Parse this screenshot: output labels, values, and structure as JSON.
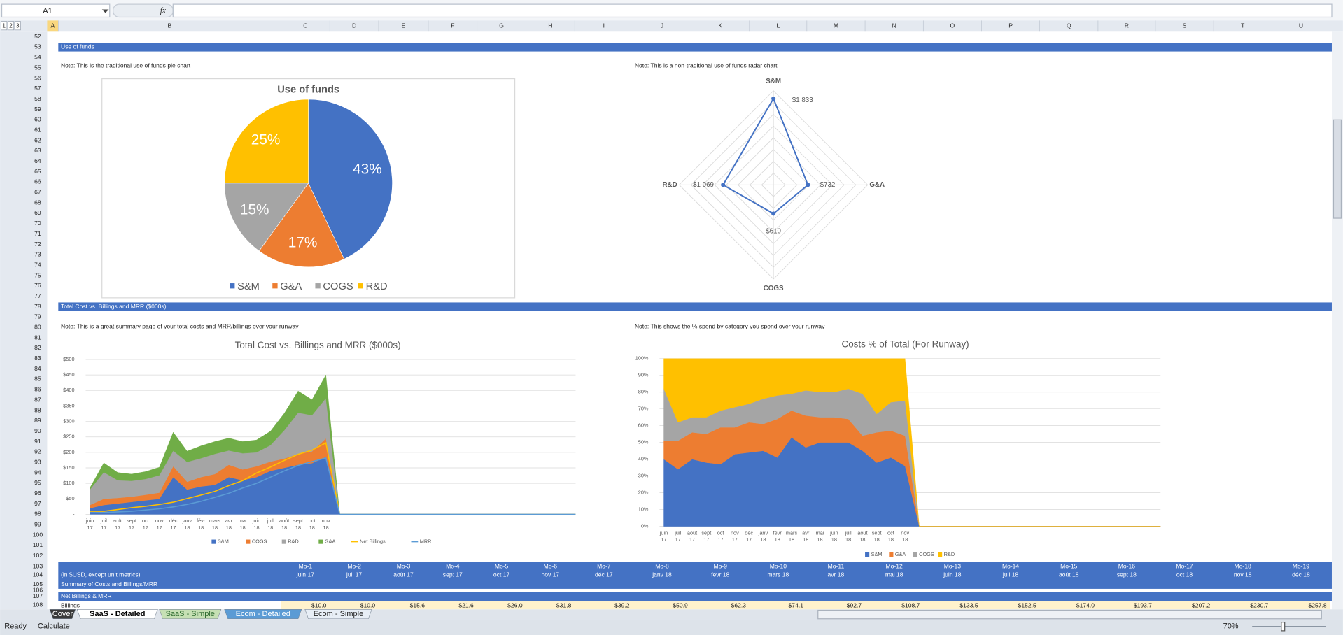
{
  "name_box": "A1",
  "outline_levels": [
    "1",
    "2",
    "3"
  ],
  "column_headers": [
    "A",
    "B",
    "C",
    "D",
    "E",
    "F",
    "G",
    "H",
    "I",
    "J",
    "K",
    "L",
    "M",
    "N",
    "O",
    "P",
    "Q",
    "R",
    "S",
    "T",
    "U"
  ],
  "row_headers": [
    52,
    53,
    54,
    55,
    56,
    57,
    58,
    59,
    60,
    61,
    62,
    63,
    64,
    65,
    66,
    67,
    68,
    69,
    70,
    71,
    72,
    73,
    74,
    75,
    76,
    77,
    78,
    79,
    80,
    81,
    82,
    83,
    84,
    85,
    86,
    87,
    88,
    89,
    90,
    91,
    92,
    93,
    94,
    95,
    96,
    97,
    98,
    99,
    100,
    101,
    102,
    103,
    104,
    105,
    106,
    107,
    108
  ],
  "sections": [
    "Use of funds",
    "Total Cost vs. Billings and MRR ($000s)"
  ],
  "notes": [
    "Note: This is the traditional use of funds pie chart",
    "Note: This is a non-traditional use of funds radar chart",
    "Note: This is a great summary page of your total costs and MRR/billings over your runway",
    "Note: This shows the % spend by category you spend over your runway"
  ],
  "table": {
    "months": [
      "Mo-1",
      "Mo-2",
      "Mo-3",
      "Mo-4",
      "Mo-5",
      "Mo-6",
      "Mo-7",
      "Mo-8",
      "Mo-9",
      "Mo-10",
      "Mo-11",
      "Mo-12",
      "Mo-13",
      "Mo-14",
      "Mo-15",
      "Mo-16",
      "Mo-17",
      "Mo-18",
      "Mo-19"
    ],
    "dates": [
      "juin 17",
      "juil 17",
      "août 17",
      "sept 17",
      "oct 17",
      "nov 17",
      "déc 17",
      "janv 18",
      "févr 18",
      "mars 18",
      "avr 18",
      "mai 18",
      "juin 18",
      "juil 18",
      "août 18",
      "sept 18",
      "oct 18",
      "nov 18",
      "déc 18"
    ],
    "units_label": "(in $USD, except unit metrics)",
    "summary_title": "Summary of Costs and Billings/MRR",
    "net_billings_title": "Net Billings & MRR",
    "billings_label": "Billings",
    "billings": [
      "$10.0",
      "$10.0",
      "$15.6",
      "$21.6",
      "$26.0",
      "$31.8",
      "$39.2",
      "$50.9",
      "$62.3",
      "$74.1",
      "$92.7",
      "$108.7",
      "$133.5",
      "$152.5",
      "$174.0",
      "$193.7",
      "$207.2",
      "$230.7",
      "$257.8"
    ]
  },
  "chart_data": [
    {
      "type": "pie",
      "title": "Use of funds",
      "categories": [
        "S&M",
        "G&A",
        "COGS",
        "R&D"
      ],
      "values": [
        43,
        17,
        15,
        25
      ],
      "value_labels": [
        "43%",
        "17%",
        "15%",
        "25%"
      ],
      "colors": [
        "#4472c4",
        "#ed7d31",
        "#a5a5a5",
        "#ffc000"
      ]
    },
    {
      "type": "radar",
      "categories": [
        "S&M",
        "G&A",
        "COGS",
        "R&D"
      ],
      "values": [
        1833,
        732,
        610,
        1069
      ],
      "value_labels": [
        "$1 833",
        "$732",
        "$610",
        "$1 069"
      ],
      "color": "#4472c4",
      "ylim": [
        0,
        2000
      ],
      "yticks": [
        250,
        500,
        750,
        1000,
        1250,
        1500,
        1750,
        2000
      ]
    },
    {
      "type": "stacked_area",
      "title": "Total Cost vs. Billings and MRR ($000s)",
      "categories": [
        "juin 17",
        "juil 17",
        "août 17",
        "sept 17",
        "oct 17",
        "nov 17",
        "déc 17",
        "janv 18",
        "févr 18",
        "mars 18",
        "avr 18",
        "mai 18",
        "juin 18",
        "juil 18",
        "août 18",
        "sept 18",
        "oct 18",
        "nov 18",
        null,
        null,
        null,
        null,
        null,
        null,
        null,
        null,
        null,
        null,
        null,
        null,
        null,
        null,
        null,
        null,
        null,
        null
      ],
      "ylim": [
        0,
        500
      ],
      "yticks": [
        {
          "value": 0,
          "label": "-"
        },
        {
          "value": 50,
          "label": "$50"
        },
        {
          "value": 100,
          "label": "$100"
        },
        {
          "value": 150,
          "label": "$150"
        },
        {
          "value": 200,
          "label": "$200"
        },
        {
          "value": 250,
          "label": "$250"
        },
        {
          "value": 300,
          "label": "$300"
        },
        {
          "value": 350,
          "label": "$350"
        },
        {
          "value": 400,
          "label": "$400"
        },
        {
          "value": 450,
          "label": "$450"
        },
        {
          "value": 500,
          "label": "$500"
        }
      ],
      "grid": true,
      "series": [
        {
          "name": "S&M",
          "color": "#4472c4",
          "values": [
            20,
            30,
            35,
            40,
            45,
            50,
            120,
            80,
            90,
            95,
            120,
            110,
            120,
            140,
            150,
            160,
            165,
            185,
            0,
            0,
            0,
            0,
            0,
            0,
            0,
            0,
            0,
            0,
            0,
            0,
            0,
            0,
            0,
            0,
            0,
            0
          ]
        },
        {
          "name": "COGS",
          "color": "#ed7d31",
          "values": [
            10,
            20,
            18,
            17,
            18,
            20,
            35,
            25,
            30,
            35,
            40,
            35,
            35,
            30,
            30,
            35,
            38,
            60,
            0,
            0,
            0,
            0,
            0,
            0,
            0,
            0,
            0,
            0,
            0,
            0,
            0,
            0,
            0,
            0,
            0,
            0
          ]
        },
        {
          "name": "R&D",
          "color": "#a5a5a5",
          "values": [
            50,
            86,
            57,
            51,
            51,
            56,
            50,
            64,
            61,
            65,
            46,
            52,
            45,
            53,
            91,
            133,
            117,
            130,
            0,
            0,
            0,
            0,
            0,
            0,
            0,
            0,
            0,
            0,
            0,
            0,
            0,
            0,
            0,
            0,
            0,
            0
          ]
        },
        {
          "name": "G&A",
          "color": "#70ad47",
          "values": [
            6,
            30,
            25,
            22,
            24,
            26,
            60,
            35,
            40,
            40,
            40,
            38,
            40,
            45,
            55,
            70,
            50,
            75,
            0,
            0,
            0,
            0,
            0,
            0,
            0,
            0,
            0,
            0,
            0,
            0,
            0,
            0,
            0,
            0,
            0,
            0
          ]
        },
        {
          "name": "Net Billings",
          "color": "#ffc000",
          "type": "line",
          "values": [
            10,
            10,
            15.6,
            21.6,
            26,
            31.8,
            39.2,
            50.9,
            62.3,
            74.1,
            92.7,
            108.7,
            133.5,
            152.5,
            174,
            193.7,
            207.2,
            230.7,
            0,
            0,
            0,
            0,
            0,
            0,
            0,
            0,
            0,
            0,
            0,
            0,
            0,
            0,
            0,
            0,
            0,
            0
          ]
        },
        {
          "name": "MRR",
          "color": "#5b9bd5",
          "type": "line",
          "values": [
            5,
            6,
            8,
            10,
            14,
            18,
            24,
            32,
            42,
            55,
            68,
            85,
            100,
            120,
            140,
            158,
            170,
            182,
            0,
            0,
            0,
            0,
            0,
            0,
            0,
            0,
            0,
            0,
            0,
            0,
            0,
            0,
            0,
            0,
            0,
            0
          ]
        }
      ]
    },
    {
      "type": "stacked_area_percent",
      "title": "Costs % of Total (For Runway)",
      "categories": [
        "juin 17",
        "juil 17",
        "août 17",
        "sept 17",
        "oct 17",
        "nov 17",
        "déc 17",
        "janv 18",
        "févr 18",
        "mars 18",
        "avr 18",
        "mai 18",
        "juin 18",
        "juil 18",
        "août 18",
        "sept 18",
        "oct 18",
        "nov 18",
        null,
        null,
        null,
        null,
        null,
        null,
        null,
        null,
        null,
        null,
        null,
        null,
        null,
        null,
        null,
        null,
        null,
        null
      ],
      "ylim": [
        0,
        100
      ],
      "yticks": [
        {
          "value": 0,
          "label": "0%"
        },
        {
          "value": 10,
          "label": "10%"
        },
        {
          "value": 20,
          "label": "20%"
        },
        {
          "value": 30,
          "label": "30%"
        },
        {
          "value": 40,
          "label": "40%"
        },
        {
          "value": 50,
          "label": "50%"
        },
        {
          "value": 60,
          "label": "60%"
        },
        {
          "value": 70,
          "label": "70%"
        },
        {
          "value": 80,
          "label": "80%"
        },
        {
          "value": 90,
          "label": "90%"
        },
        {
          "value": 100,
          "label": "100%"
        }
      ],
      "grid": true,
      "series": [
        {
          "name": "S&M",
          "color": "#4472c4",
          "values": [
            40,
            34,
            40,
            38,
            37,
            43,
            44,
            45,
            41,
            53,
            47,
            50,
            50,
            50,
            45,
            38,
            41,
            36,
            0,
            0,
            0,
            0,
            0,
            0,
            0,
            0,
            0,
            0,
            0,
            0,
            0,
            0,
            0,
            0,
            0,
            0
          ]
        },
        {
          "name": "G&A",
          "color": "#ed7d31",
          "values": [
            11,
            17,
            16,
            17,
            22,
            16,
            18,
            16,
            23,
            16,
            19,
            15,
            15,
            14,
            9,
            18,
            16,
            18,
            0,
            0,
            0,
            0,
            0,
            0,
            0,
            0,
            0,
            0,
            0,
            0,
            0,
            0,
            0,
            0,
            0,
            0
          ]
        },
        {
          "name": "COGS",
          "color": "#a5a5a5",
          "values": [
            31,
            11,
            9,
            10,
            10,
            12,
            11,
            15,
            14,
            10,
            15,
            15,
            15,
            18,
            25,
            11,
            17,
            21,
            0,
            0,
            0,
            0,
            0,
            0,
            0,
            0,
            0,
            0,
            0,
            0,
            0,
            0,
            0,
            0,
            0,
            0
          ]
        },
        {
          "name": "R&D",
          "color": "#ffc000",
          "values": [
            18,
            38,
            35,
            35,
            31,
            29,
            27,
            24,
            22,
            21,
            19,
            20,
            20,
            18,
            21,
            33,
            26,
            25,
            0,
            0,
            0,
            0,
            0,
            0,
            0,
            0,
            0,
            0,
            0,
            0,
            0,
            0,
            0,
            0,
            0,
            0
          ]
        }
      ]
    }
  ],
  "sheet_tabs": [
    "Cover",
    "SaaS - Detailed",
    "SaaS - Simple",
    "Ecom - Detailed",
    "Ecom - Simple"
  ],
  "status": [
    "Ready",
    "Calculate"
  ],
  "zoom": "70%"
}
